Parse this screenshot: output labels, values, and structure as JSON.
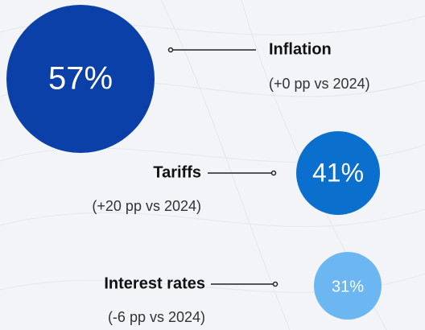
{
  "chart_data": {
    "type": "bubble",
    "categories": [
      "Inflation",
      "Tariffs",
      "Interest rates"
    ],
    "values": [
      57,
      41,
      31
    ],
    "value_labels": [
      "57%",
      "41%",
      "31%"
    ],
    "annotations": [
      "(+0 pp vs 2024)",
      "(+20 pp vs 2024)",
      "(-6 pp vs 2024)"
    ],
    "colors": [
      "#0a40a8",
      "#0b6fce",
      "#6cb6f2"
    ]
  }
}
